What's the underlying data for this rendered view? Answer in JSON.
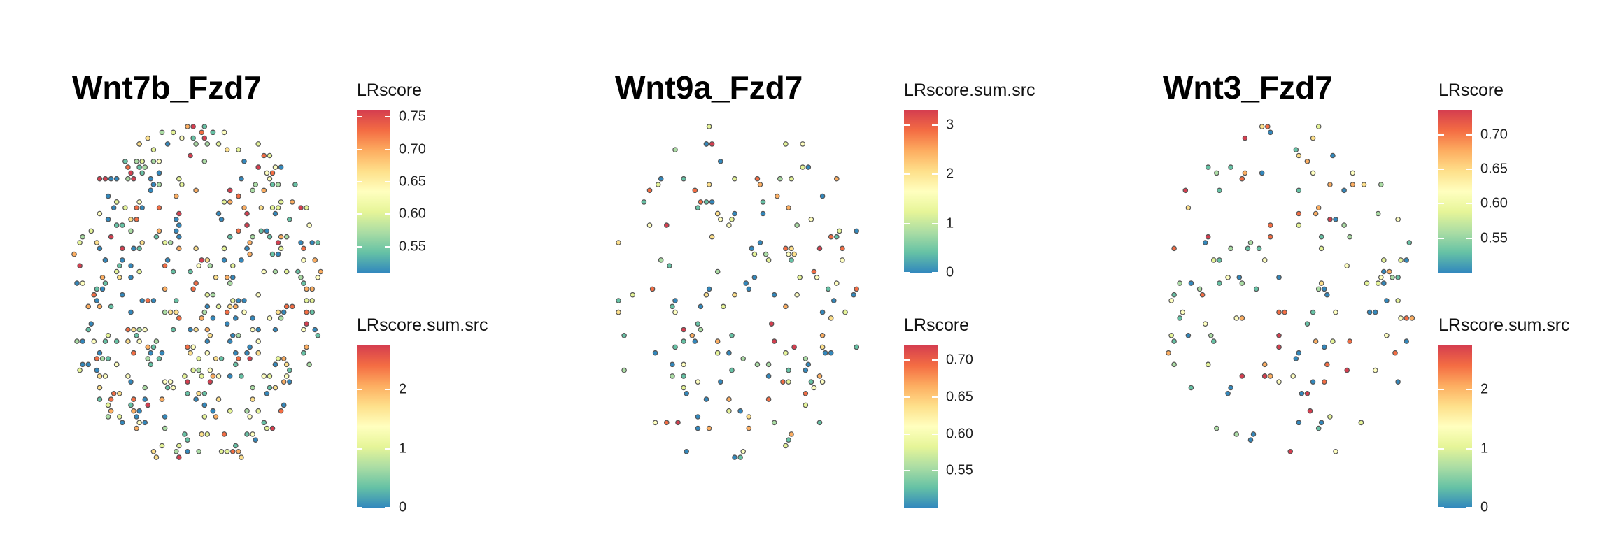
{
  "chart_data": [
    {
      "type": "scatter",
      "title": "Wnt7b_Fzd7",
      "legends": [
        {
          "title": "LRscore",
          "range": [
            0.51,
            0.76
          ],
          "ticks": [
            0.55,
            0.6,
            0.65,
            0.7,
            0.75
          ],
          "tick_labels": [
            "0.55",
            "0.60",
            "0.65",
            "0.70",
            "0.75"
          ]
        },
        {
          "title": "LRscore.sum.src",
          "range": [
            0,
            2.75
          ],
          "ticks": [
            0,
            1,
            2
          ],
          "tick_labels": [
            "0",
            "1",
            "2"
          ]
        }
      ],
      "palette": [
        "#3288bd",
        "#66c2a5",
        "#abdda4",
        "#e6f598",
        "#ffffbf",
        "#fee08b",
        "#fdae61",
        "#f46d43",
        "#d53e4f"
      ]
    },
    {
      "type": "scatter",
      "title": "Wnt9a_Fzd7",
      "legends": [
        {
          "title": "LRscore.sum.src",
          "range": [
            0,
            3.3
          ],
          "ticks": [
            0,
            1,
            2,
            3
          ],
          "tick_labels": [
            "0",
            "1",
            "2",
            "3"
          ]
        },
        {
          "title": "LRscore",
          "range": [
            0.5,
            0.72
          ],
          "ticks": [
            0.55,
            0.6,
            0.65,
            0.7
          ],
          "tick_labels": [
            "0.55",
            "0.60",
            "0.65",
            "0.70"
          ]
        }
      ],
      "palette": [
        "#3288bd",
        "#66c2a5",
        "#abdda4",
        "#e6f598",
        "#ffffbf",
        "#fee08b",
        "#fdae61",
        "#f46d43",
        "#d53e4f"
      ]
    },
    {
      "type": "scatter",
      "title": "Wnt3_Fzd7",
      "legends": [
        {
          "title": "LRscore",
          "range": [
            0.5,
            0.735
          ],
          "ticks": [
            0.55,
            0.6,
            0.65,
            0.7
          ],
          "tick_labels": [
            "0.55",
            "0.60",
            "0.65",
            "0.70"
          ]
        },
        {
          "title": "LRscore.sum.src",
          "range": [
            0,
            2.75
          ],
          "ticks": [
            0,
            1,
            2
          ],
          "tick_labels": [
            "0",
            "1",
            "2"
          ]
        }
      ],
      "palette": [
        "#3288bd",
        "#66c2a5",
        "#abdda4",
        "#e6f598",
        "#ffffbf",
        "#fee08b",
        "#fdae61",
        "#f46d43",
        "#d53e4f"
      ]
    }
  ]
}
